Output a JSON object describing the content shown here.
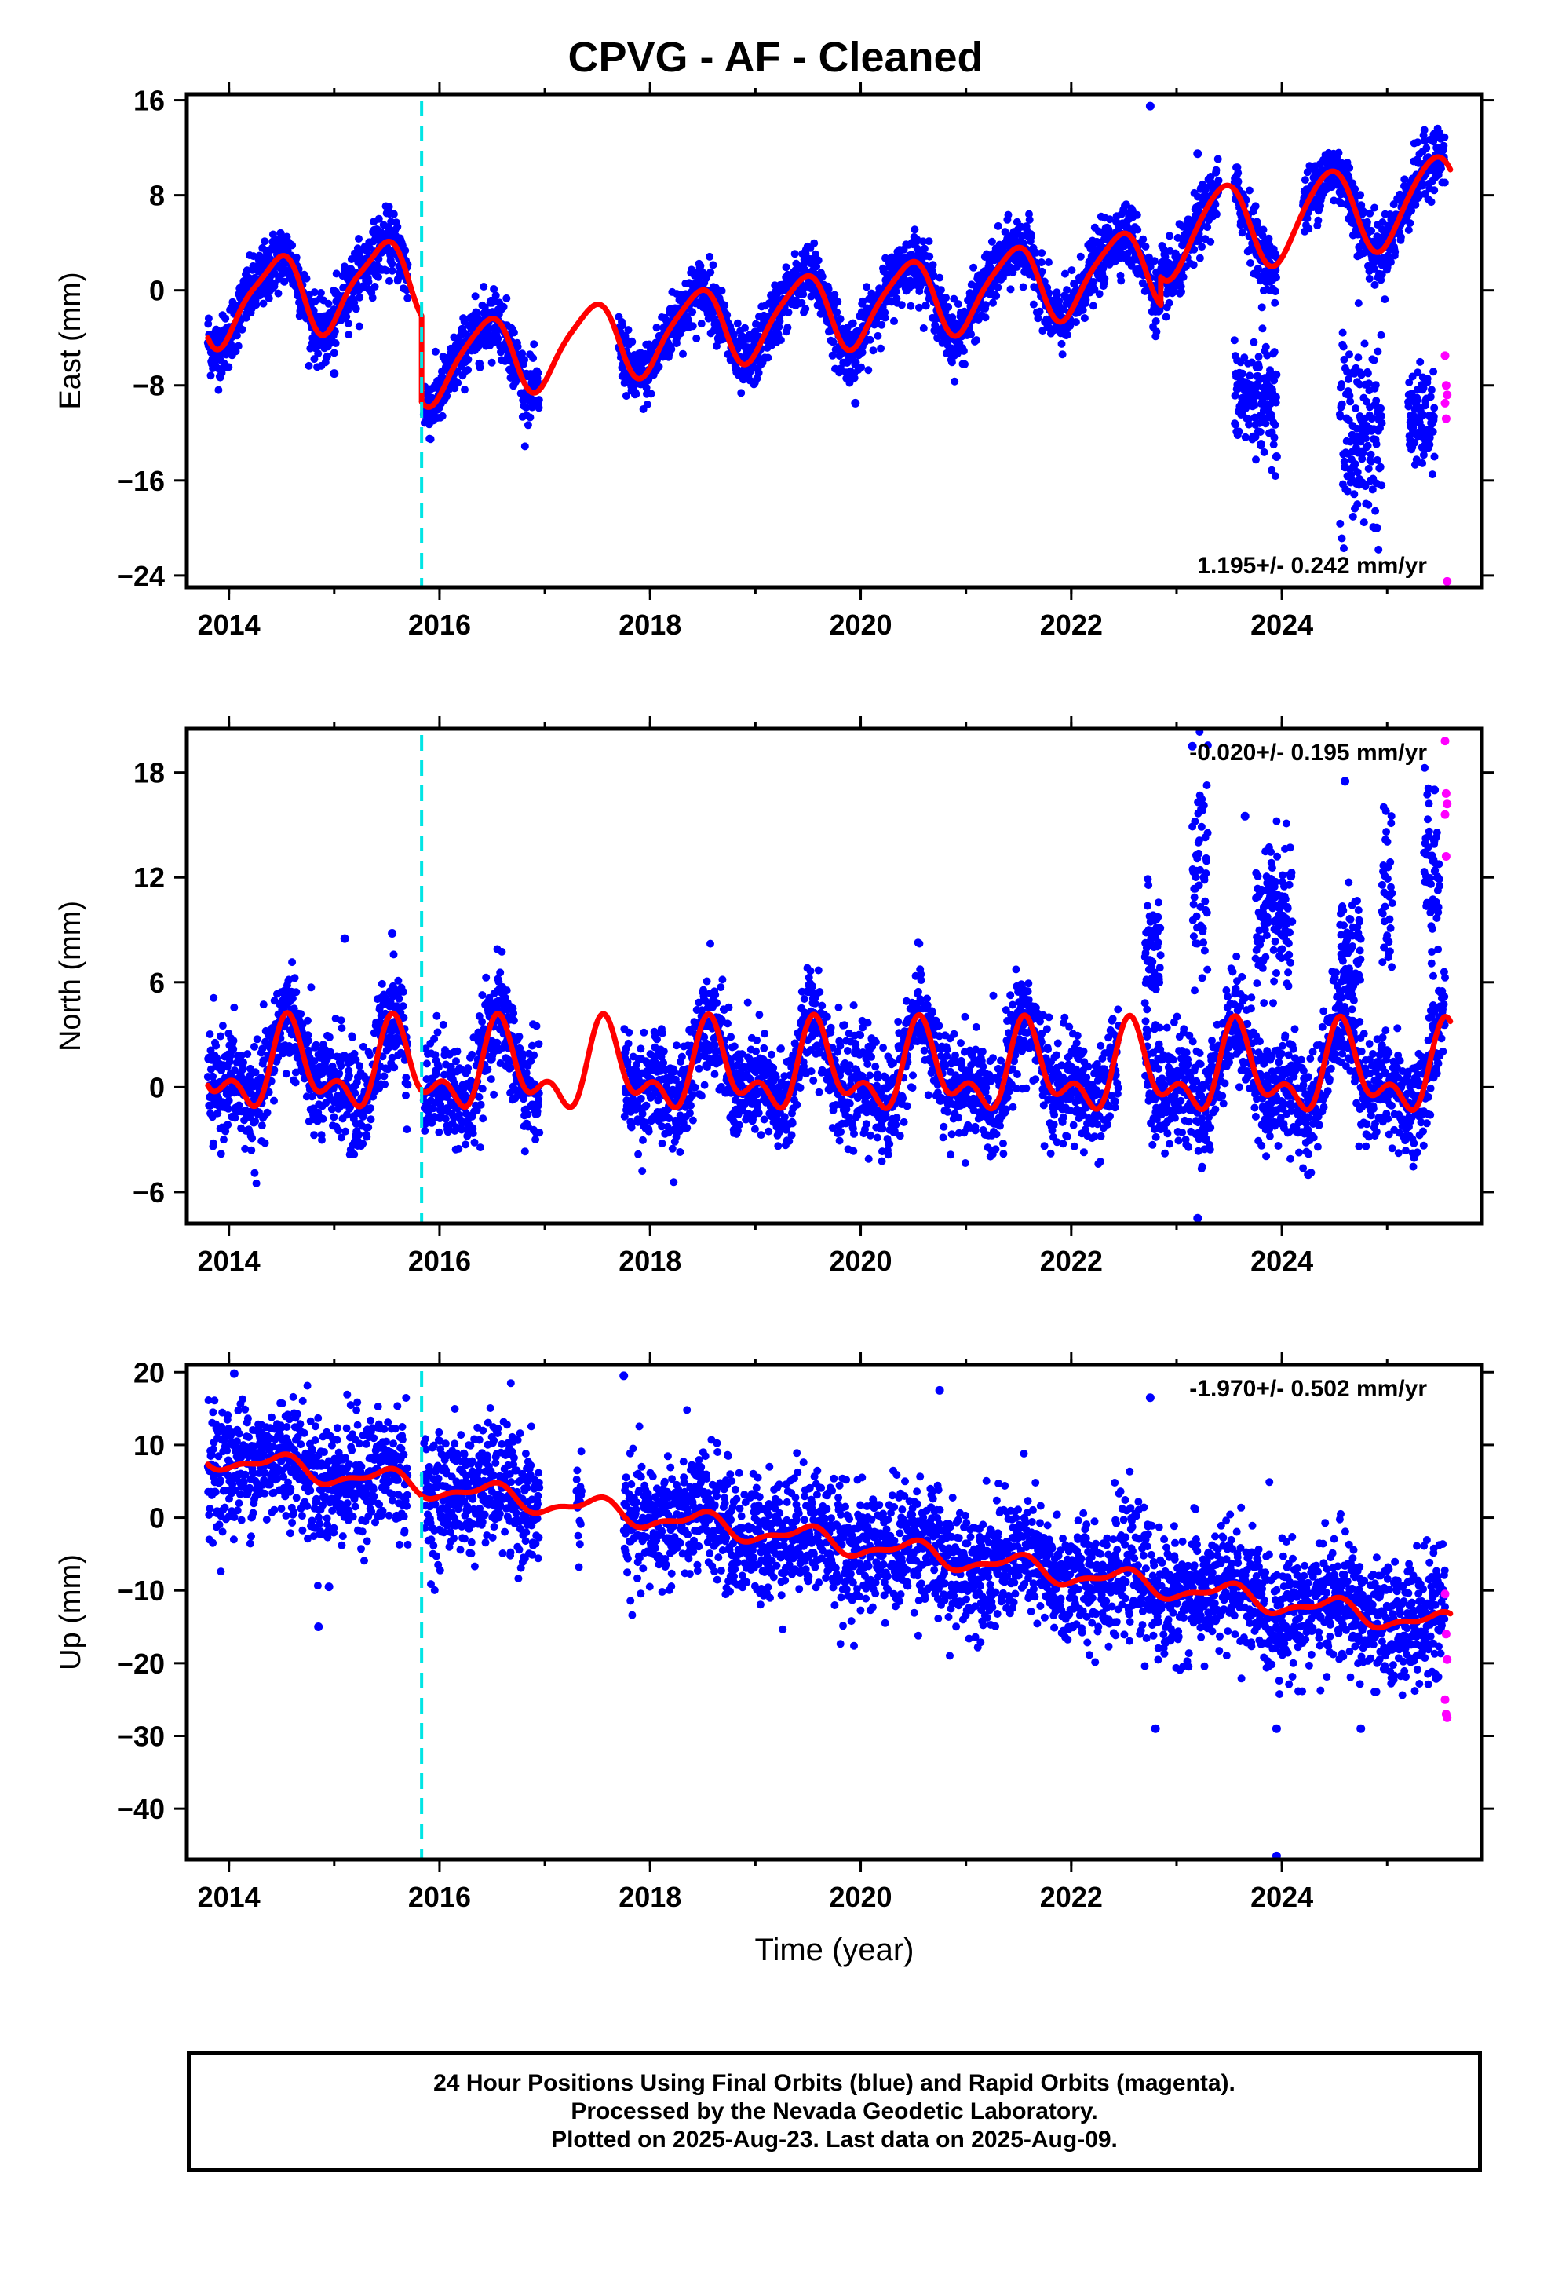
{
  "figure": {
    "title": "CPVG  - AF - Cleaned",
    "footer": [
      "24 Hour Positions Using Final Orbits (blue) and Rapid Orbits (magenta).",
      "Processed by the Nevada Geodetic Laboratory.",
      "Plotted on 2025-Aug-23. Last data on 2025-Aug-09."
    ],
    "colors": {
      "final_orbits": "#0000ff",
      "rapid_orbits": "#ff00ff",
      "model_fit": "#ff0000",
      "equipment_change": "#00e5e5"
    }
  },
  "chart_data": [
    {
      "type": "scatter",
      "name": "east",
      "ylabel": "East (mm)",
      "xlabel": "",
      "xlim": [
        2013.6,
        2025.9
      ],
      "ylim": [
        -25,
        16.5
      ],
      "xticks": [
        2014,
        2016,
        2018,
        2020,
        2022,
        2024
      ],
      "yticks": [
        16,
        8,
        0,
        -8,
        -16,
        -24
      ],
      "ytick_labels": [
        "16",
        "8",
        "0",
        "−8",
        "−16",
        "−24"
      ],
      "rate_label": "1.195+/- 0.242 mm/yr",
      "rate_position": "bottom-right",
      "equipment_change": 2015.83,
      "model": {
        "segments": [
          {
            "start": 2013.8,
            "end": 2015.83,
            "offset": 0.0,
            "slope": 1.195,
            "t0": 2014.0,
            "b0": -1.0,
            "amp1": 3.3,
            "ph1": 5.1,
            "amp2": 0.8,
            "ph2": 0.3
          },
          {
            "start": 2015.83,
            "end": 2022.85,
            "offset": -7.5,
            "slope": 1.195,
            "t0": 2014.0,
            "b0": -1.0,
            "amp1": 3.2,
            "ph1": 5.1,
            "amp2": 0.6,
            "ph2": 0.3
          },
          {
            "start": 2022.85,
            "end": 2025.6,
            "offset": -5.0,
            "slope": 1.195,
            "t0": 2014.0,
            "b0": -1.0,
            "amp1": 3.6,
            "ph1": 5.1,
            "amp2": 0.4,
            "ph2": 0.3
          }
        ]
      },
      "data_spans": [
        [
          2013.8,
          2015.7
        ],
        [
          2015.85,
          2016.95
        ],
        [
          2017.7,
          2023.4
        ],
        [
          2023.55,
          2023.95
        ],
        [
          2024.2,
          2025.55
        ]
      ],
      "scatter_sigma": 1.3,
      "outliers": [
        [
          2022.75,
          15.5
        ],
        [
          2023.2,
          11.5
        ],
        [
          2019.95,
          -9.5
        ],
        [
          2015.0,
          -7.0
        ],
        [
          2023.95,
          -14.0
        ],
        [
          2024.9,
          -20.0
        ]
      ],
      "clusters": [
        {
          "start": 2023.55,
          "end": 2023.95,
          "center": -9.0,
          "spread": 2.2
        },
        {
          "start": 2024.55,
          "end": 2024.95,
          "center": -12.0,
          "spread": 4.0
        },
        {
          "start": 2025.2,
          "end": 2025.45,
          "center": -11.0,
          "spread": 2.0
        }
      ],
      "rapid_points": [
        [
          2025.55,
          -5.5
        ],
        [
          2025.56,
          -8.0
        ],
        [
          2025.57,
          -8.8
        ],
        [
          2025.55,
          -9.5
        ],
        [
          2025.56,
          -10.8
        ],
        [
          2025.57,
          -24.5
        ]
      ]
    },
    {
      "type": "scatter",
      "name": "north",
      "ylabel": "North (mm)",
      "xlabel": "",
      "xlim": [
        2013.6,
        2025.9
      ],
      "ylim": [
        -7.8,
        20.5
      ],
      "xticks": [
        2014,
        2016,
        2018,
        2020,
        2022,
        2024
      ],
      "yticks": [
        18,
        12,
        6,
        0,
        -6
      ],
      "ytick_labels": [
        "18",
        "12",
        "6",
        "0",
        "−6"
      ],
      "rate_label": "-0.020+/- 0.195 mm/yr",
      "rate_position": "top-right",
      "equipment_change": 2015.83,
      "model": {
        "segments": [
          {
            "start": 2013.8,
            "end": 2025.6,
            "offset": 0.0,
            "slope": -0.02,
            "t0": 2014.0,
            "b0": 1.0,
            "amp1": 2.0,
            "ph1": 4.2,
            "amp2": 1.3,
            "ph2": 1.0
          }
        ]
      },
      "data_spans": [
        [
          2013.8,
          2015.7
        ],
        [
          2015.85,
          2016.95
        ],
        [
          2017.75,
          2022.45
        ],
        [
          2022.7,
          2025.55
        ]
      ],
      "scatter_sigma": 1.5,
      "outliers": [
        [
          2015.1,
          8.5
        ],
        [
          2015.55,
          8.8
        ],
        [
          2023.15,
          19.5
        ],
        [
          2023.2,
          -7.5
        ],
        [
          2024.6,
          17.5
        ],
        [
          2025.45,
          17.0
        ],
        [
          2023.65,
          15.5
        ],
        [
          2024.25,
          -5.0
        ]
      ],
      "clusters": [
        {
          "start": 2022.7,
          "end": 2022.85,
          "center": 7.5,
          "spread": 2.0
        },
        {
          "start": 2023.15,
          "end": 2023.3,
          "center": 12.0,
          "spread": 3.5
        },
        {
          "start": 2023.75,
          "end": 2024.1,
          "center": 9.5,
          "spread": 2.0
        },
        {
          "start": 2024.55,
          "end": 2024.75,
          "center": 7.0,
          "spread": 1.8
        },
        {
          "start": 2024.95,
          "end": 2025.05,
          "center": 11.0,
          "spread": 3.0
        },
        {
          "start": 2025.35,
          "end": 2025.5,
          "center": 12.0,
          "spread": 3.0
        }
      ],
      "rapid_points": [
        [
          2025.55,
          19.8
        ],
        [
          2025.56,
          16.8
        ],
        [
          2025.57,
          16.2
        ],
        [
          2025.55,
          15.6
        ],
        [
          2025.56,
          13.2
        ]
      ]
    },
    {
      "type": "scatter",
      "name": "up",
      "ylabel": "Up (mm)",
      "xlabel": "Time (year)",
      "xlim": [
        2013.6,
        2025.9
      ],
      "ylim": [
        -47,
        21
      ],
      "xticks": [
        2014,
        2016,
        2018,
        2020,
        2022,
        2024
      ],
      "yticks": [
        20,
        10,
        0,
        -10,
        -20,
        -30,
        -40
      ],
      "ytick_labels": [
        "20",
        "10",
        "0",
        "−10",
        "−20",
        "−30",
        "−40"
      ],
      "rate_label": "-1.970+/- 0.502 mm/yr",
      "rate_position": "top-right",
      "equipment_change": 2015.83,
      "model": {
        "segments": [
          {
            "start": 2013.8,
            "end": 2025.6,
            "offset": 0.0,
            "slope": -1.97,
            "t0": 2014.0,
            "b0": 8.0,
            "amp1": 1.4,
            "ph1": 4.8,
            "amp2": 0.6,
            "ph2": 0.4
          }
        ]
      },
      "data_spans": [
        [
          2013.8,
          2015.7
        ],
        [
          2015.85,
          2016.95
        ],
        [
          2017.3,
          2017.35
        ],
        [
          2017.75,
          2025.55
        ]
      ],
      "scatter_sigma": 4.2,
      "outliers": [
        [
          2014.85,
          -15.0
        ],
        [
          2014.95,
          -9.5
        ],
        [
          2022.8,
          -29.0
        ],
        [
          2023.95,
          -29.0
        ],
        [
          2023.95,
          -46.5
        ],
        [
          2024.75,
          -29.0
        ],
        [
          2020.75,
          17.5
        ],
        [
          2022.75,
          16.5
        ],
        [
          2017.75,
          19.5
        ],
        [
          2014.05,
          19.8
        ]
      ],
      "clusters": [],
      "rapid_points": [
        [
          2025.55,
          -10.5
        ],
        [
          2025.56,
          -16.0
        ],
        [
          2025.57,
          -19.5
        ],
        [
          2025.55,
          -25.0
        ],
        [
          2025.56,
          -27.0
        ],
        [
          2025.57,
          -27.5
        ]
      ]
    }
  ]
}
